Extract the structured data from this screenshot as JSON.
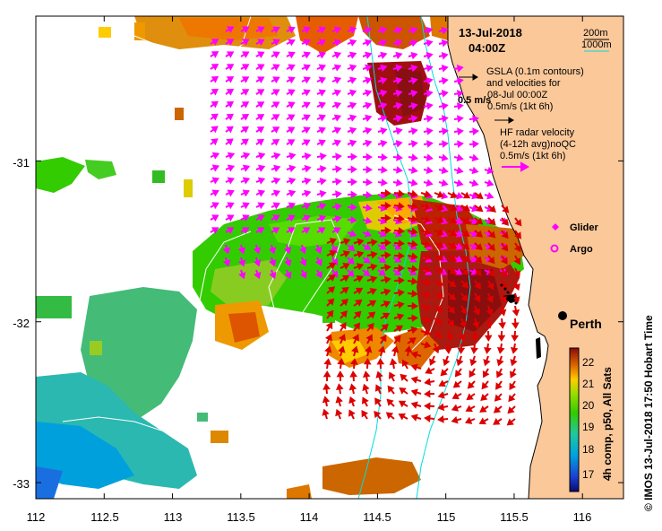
{
  "header": {
    "date": "13-Jul-2018",
    "time": "04:00Z"
  },
  "depth_legend": {
    "contour_200": "200m",
    "contour_1000": "1000m",
    "line_color": "#00dddd"
  },
  "gsla_info": {
    "line1": "GSLA (0.1m contours)",
    "line2": "and velocities for",
    "line3": "08-Jul 00:00Z",
    "line4": "0.5m/s (1kt 6h)",
    "overlay_label": "0.5 m/s"
  },
  "radar_info": {
    "line1": "HF radar velocity",
    "line2": "(4-12h avg)noQC",
    "line3": "0.5m/s (1kt 6h)",
    "arrow_color": "#ff00ff"
  },
  "platforms": {
    "glider": "Glider",
    "argo": "Argo"
  },
  "city": {
    "name": "Perth",
    "lon": 115.86,
    "lat": -31.95
  },
  "x_axis": {
    "labels": [
      "112",
      "112.5",
      "113",
      "113.5",
      "114",
      "114.5",
      "115",
      "115.5",
      "116"
    ],
    "values": [
      112,
      112.5,
      113,
      113.5,
      114,
      114.5,
      115,
      115.5,
      116
    ],
    "range": [
      112,
      116.3
    ]
  },
  "y_axis": {
    "labels": [
      "-31",
      "-32",
      "-33"
    ],
    "values": [
      -31,
      -32,
      -33
    ],
    "range": [
      -30.1,
      -33.1
    ]
  },
  "colorbar": {
    "title": "4h comp, p50, All Sats",
    "labels": [
      "22",
      "21",
      "20",
      "19",
      "18",
      "17"
    ],
    "values": [
      22,
      21,
      20,
      19,
      18,
      17
    ],
    "range": [
      16.5,
      22.5
    ]
  },
  "side_caption": "© IMOS 13-Jul-2018 17:50 Hobart Time",
  "colors": {
    "land": "#fbc89a",
    "sst_warm": "#a01010",
    "sst_mid": "#33cc00",
    "sst_cool": "#00aadd",
    "gsla_arrow": "#000000",
    "radar_arrow": "#ff00ff",
    "sst_arrow": "#dd0000"
  }
}
